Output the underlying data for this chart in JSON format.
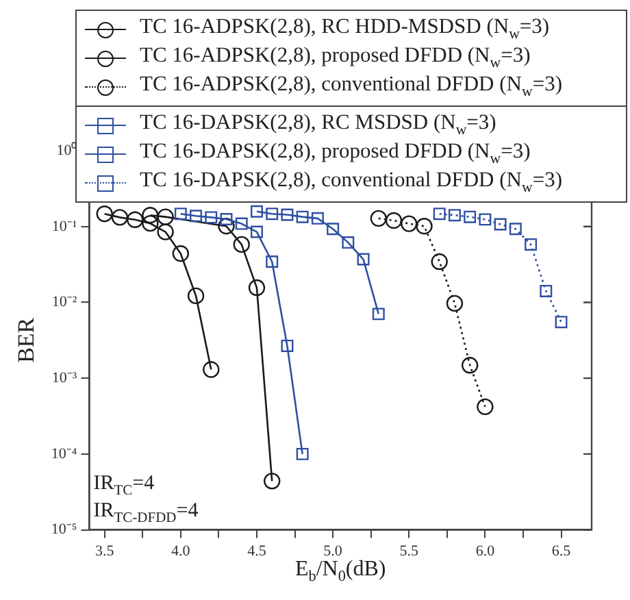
{
  "chart_data": {
    "type": "line",
    "xlabel": "E$_{b}$/N$_{0}$(dB)",
    "ylabel": "BER",
    "log": "y",
    "grid": false,
    "legend": "top",
    "xlim": [
      3.4,
      6.7
    ],
    "ylim": [
      1e-05,
      1
    ],
    "xticks": [
      3.5,
      {
        "value": 3.75,
        "label": null
      },
      {
        "value": 4,
        "label": "4.0"
      },
      {
        "value": 4.25,
        "label": null
      },
      4.5,
      {
        "value": 4.75,
        "label": null
      },
      {
        "value": 5,
        "label": "5.0"
      },
      {
        "value": 5.25,
        "label": null
      },
      5.5,
      {
        "value": 5.75,
        "label": null
      },
      {
        "value": 6,
        "label": "6.0"
      },
      {
        "value": 6.25,
        "label": null
      },
      6.5
    ],
    "yticks": [
      {
        "value": 1e-05,
        "label": "10⁻⁵"
      },
      {
        "value": 0.0001,
        "label": "10⁻⁴"
      },
      {
        "value": 0.001,
        "label": "10⁻³"
      },
      {
        "value": 0.01,
        "label": "10⁻²"
      },
      {
        "value": 0.1,
        "label": "10⁻¹"
      },
      {
        "value": 1,
        "label": "10⁰"
      }
    ],
    "annotations": [
      "IR$_{TC}$=4",
      "IR$_{TC-DFDD}$=4"
    ],
    "series": [
      {
        "name": "TC 16-ADPSK(2,8), RC HDD-MSDSD (N$_{w}$=3)",
        "color": "#1a1a1a",
        "marker": "circle",
        "line_style": "solid",
        "x": [
          3.5,
          3.6,
          3.7,
          3.8,
          3.9,
          4.0,
          4.1,
          4.2
        ],
        "values": [
          0.147,
          0.132,
          0.123,
          0.11,
          0.085,
          0.044,
          0.0122,
          0.0013
        ]
      },
      {
        "name": "TC 16-ADPSK(2,8), proposed DFDD (N$_{w}$=3)",
        "color": "#1a1a1a",
        "marker": "circle",
        "line_style": "solid",
        "x": [
          3.8,
          3.9,
          4.0,
          4.1,
          4.2,
          4.3,
          4.4,
          4.5,
          4.6
        ],
        "values": [
          0.141,
          0.134,
          null,
          null,
          null,
          0.101,
          0.058,
          0.0156,
          4.4e-05
        ]
      },
      {
        "name": "TC 16-ADPSK(2,8), conventional DFDD (N$_{w}$=3)",
        "color": "#1a1a1a",
        "marker": "circle",
        "line_style": "dotted",
        "x": [
          5.3,
          5.4,
          5.5,
          5.6,
          5.7,
          5.8,
          5.9,
          6.0
        ],
        "values": [
          0.128,
          0.12,
          0.109,
          0.101,
          0.0344,
          0.0097,
          0.00148,
          0.00042
        ]
      },
      {
        "name": "TC 16-DAPSK(2,8), RC MSDSD (N$_{w}$=3)",
        "color": "#2e4fa3",
        "marker": "square",
        "line_style": "solid",
        "x": [
          4.0,
          4.1,
          4.2,
          4.3,
          4.4,
          4.5,
          4.6,
          4.7,
          4.8
        ],
        "values": [
          0.147,
          0.138,
          0.132,
          0.125,
          0.109,
          0.085,
          0.0344,
          0.00267,
          0.0001
        ]
      },
      {
        "name": "TC 16-DAPSK(2,8), proposed DFDD (N$_{w}$=3)",
        "color": "#2e4fa3",
        "marker": "square",
        "line_style": "solid",
        "x": [
          4.5,
          4.6,
          4.7,
          4.8,
          4.9,
          5.0,
          5.1,
          5.2,
          5.3
        ],
        "values": [
          0.158,
          0.147,
          0.143,
          0.134,
          0.128,
          0.093,
          0.0615,
          0.037,
          0.00703
        ]
      },
      {
        "name": "TC 16-DAPSK(2,8), conventional DFDD (N$_{w}$=3)",
        "color": "#2e4fa3",
        "marker": "square",
        "line_style": "dotted",
        "x": [
          5.7,
          5.8,
          5.9,
          6.0,
          6.1,
          6.2,
          6.3,
          6.4,
          6.5
        ],
        "values": [
          0.147,
          0.141,
          0.134,
          0.124,
          0.107,
          0.093,
          0.058,
          0.0141,
          0.0055
        ]
      }
    ]
  }
}
